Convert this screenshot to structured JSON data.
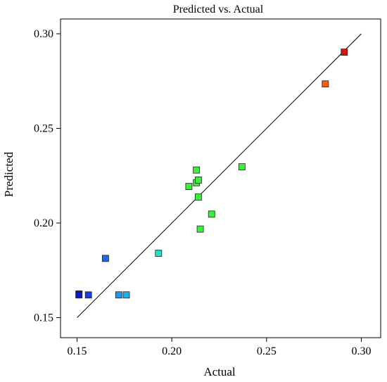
{
  "chart_data": {
    "type": "scatter",
    "title": "Predicted vs. Actual",
    "xlabel": "Actual",
    "ylabel": "Predicted",
    "xlim": [
      0.15,
      0.3
    ],
    "ylim": [
      0.15,
      0.3
    ],
    "xticks": [
      "0.15",
      "0.20",
      "0.25",
      "0.30"
    ],
    "yticks": [
      "0.15",
      "0.20",
      "0.25",
      "0.30"
    ],
    "grid": false,
    "reference_line": {
      "from": [
        0.15,
        0.15
      ],
      "to": [
        0.3,
        0.3
      ]
    },
    "points": [
      {
        "x": 0.151,
        "y": 0.1625,
        "color": "#0a18c8"
      },
      {
        "x": 0.151,
        "y": 0.162,
        "color": "#0a18c8"
      },
      {
        "x": 0.156,
        "y": 0.162,
        "color": "#1a3ee0"
      },
      {
        "x": 0.165,
        "y": 0.1813,
        "color": "#1e6ae6"
      },
      {
        "x": 0.172,
        "y": 0.162,
        "color": "#2296e8"
      },
      {
        "x": 0.176,
        "y": 0.162,
        "color": "#26aee8"
      },
      {
        "x": 0.193,
        "y": 0.184,
        "color": "#22e0c8"
      },
      {
        "x": 0.209,
        "y": 0.2193,
        "color": "#3cf03a"
      },
      {
        "x": 0.213,
        "y": 0.228,
        "color": "#3cf03a"
      },
      {
        "x": 0.213,
        "y": 0.2213,
        "color": "#3cf03a"
      },
      {
        "x": 0.214,
        "y": 0.2227,
        "color": "#3cf03a"
      },
      {
        "x": 0.214,
        "y": 0.2137,
        "color": "#3cf03a"
      },
      {
        "x": 0.215,
        "y": 0.1968,
        "color": "#3cf03a"
      },
      {
        "x": 0.221,
        "y": 0.2047,
        "color": "#3cf03a"
      },
      {
        "x": 0.237,
        "y": 0.2297,
        "color": "#3cf03a"
      },
      {
        "x": 0.281,
        "y": 0.2735,
        "color": "#ff5a0a"
      },
      {
        "x": 0.291,
        "y": 0.2903,
        "color": "#e01010"
      }
    ]
  }
}
